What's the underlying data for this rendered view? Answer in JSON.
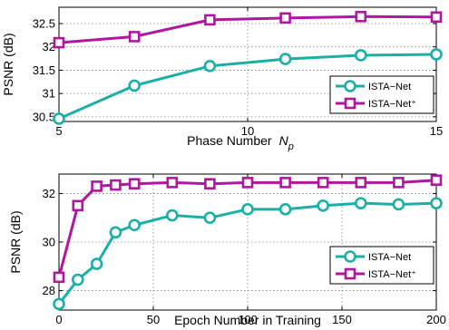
{
  "colors": {
    "teal": "#1ab0a6",
    "magenta": "#b0169f",
    "grid": "#808080",
    "axis": "#000000"
  },
  "chart_data": [
    {
      "type": "line",
      "x": [
        5,
        7,
        9,
        11,
        13,
        15
      ],
      "series": [
        {
          "name": "ISTA−Net",
          "marker": "circle",
          "color": "#1ab0a6",
          "values": [
            30.46,
            31.17,
            31.59,
            31.74,
            31.82,
            31.84
          ]
        },
        {
          "name": "ISTA−Net⁺",
          "marker": "square",
          "color": "#b0169f",
          "values": [
            32.09,
            32.22,
            32.58,
            32.62,
            32.65,
            32.64
          ]
        }
      ],
      "xlabel": "Phase Number",
      "xlabel_symbol": "N",
      "xlabel_sub": "p",
      "ylabel": "PSNR (dB)",
      "xlim": [
        5,
        15
      ],
      "ylim": [
        30.4,
        32.85
      ],
      "xticks": [
        5,
        10,
        15
      ],
      "xtick_labels": [
        "5",
        "10",
        "15"
      ],
      "yticks": [
        30.5,
        31,
        31.5,
        32,
        32.5
      ],
      "ytick_labels": [
        "30.5",
        "31",
        "31.5",
        "32",
        "32.5"
      ],
      "grid": true,
      "legend": "lower-right"
    },
    {
      "type": "line",
      "x": [
        0,
        10,
        20,
        30,
        40,
        60,
        80,
        100,
        120,
        140,
        160,
        180,
        200
      ],
      "series": [
        {
          "name": "ISTA−Net",
          "marker": "circle",
          "color": "#1ab0a6",
          "values": [
            27.45,
            28.45,
            29.1,
            30.4,
            30.7,
            31.1,
            31.0,
            31.35,
            31.35,
            31.5,
            31.6,
            31.55,
            31.6
          ]
        },
        {
          "name": "ISTA−Net⁺",
          "marker": "square",
          "color": "#b0169f",
          "values": [
            28.55,
            31.5,
            32.3,
            32.35,
            32.4,
            32.45,
            32.4,
            32.45,
            32.45,
            32.45,
            32.45,
            32.45,
            32.55
          ]
        }
      ],
      "xlabel": "Epoch Number in Training",
      "ylabel": "PSNR (dB)",
      "xlim": [
        0,
        200
      ],
      "ylim": [
        27.2,
        32.8
      ],
      "xticks": [
        0,
        50,
        100,
        150,
        200
      ],
      "xtick_labels": [
        "0",
        "50",
        "100",
        "150",
        "200"
      ],
      "yticks": [
        28,
        30,
        32
      ],
      "ytick_labels": [
        "28",
        "30",
        "32"
      ],
      "grid": true,
      "legend": "lower-right"
    }
  ]
}
